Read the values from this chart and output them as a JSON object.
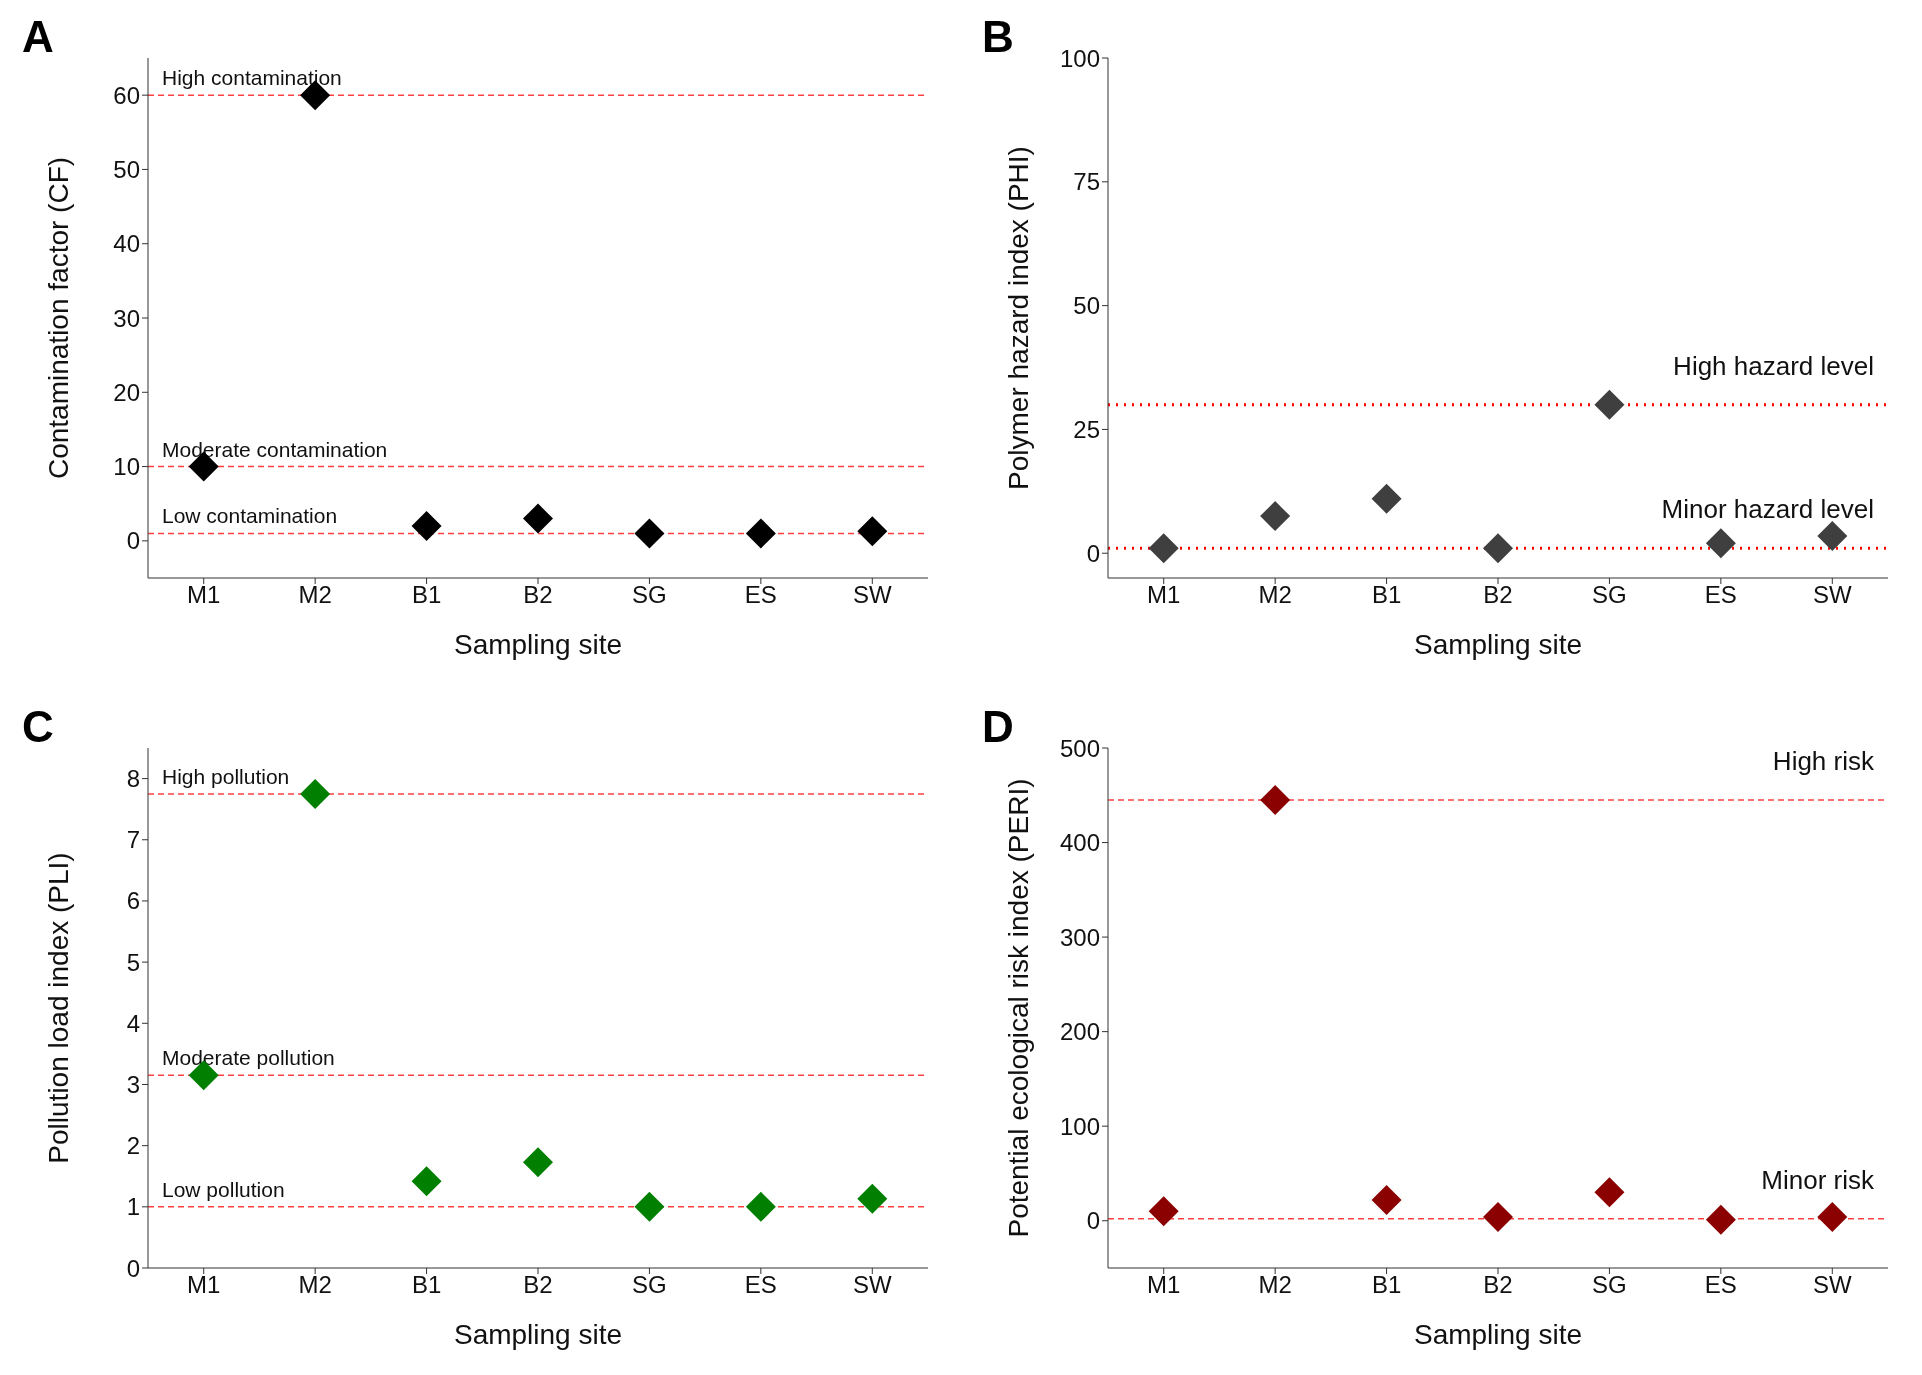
{
  "chart_data": [
    {
      "type": "scatter",
      "title": "A",
      "xlabel": "Sampling site",
      "ylabel": "Contamination factor (CF)",
      "categories": [
        "M1",
        "M2",
        "B1",
        "B2",
        "SG",
        "ES",
        "SW"
      ],
      "values": [
        10,
        60,
        2,
        3,
        1,
        1,
        1.3
      ],
      "color": "#000000",
      "marker": "diamond",
      "ylim": [
        -5,
        65
      ],
      "yticks": [
        0,
        10,
        20,
        30,
        40,
        50,
        60
      ],
      "grid": false,
      "legend": false,
      "ref_lines": [
        {
          "axis": "y",
          "value": 60,
          "label": "High contamination",
          "color": "#ff4040",
          "line_style": "dashed"
        },
        {
          "axis": "y",
          "value": 10,
          "label": "Moderate contamination",
          "color": "#ff4040",
          "line_style": "dashed"
        },
        {
          "axis": "y",
          "value": 1,
          "label": "Low contamination",
          "color": "#ff4040",
          "line_style": "dashed"
        }
      ]
    },
    {
      "type": "scatter",
      "title": "B",
      "xlabel": "Sampling site",
      "ylabel": "Polymer hazard index (PHI)",
      "categories": [
        "M1",
        "M2",
        "B1",
        "B2",
        "SG",
        "ES",
        "SW"
      ],
      "values": [
        1,
        7.5,
        11,
        1,
        30,
        2,
        3.5
      ],
      "color": "#3f3f3f",
      "marker": "diamond",
      "ylim": [
        -5,
        100
      ],
      "yticks": [
        0,
        25,
        50,
        75,
        100
      ],
      "grid": false,
      "legend": false,
      "ref_lines": [
        {
          "axis": "y",
          "value": 30,
          "label": "High hazard level",
          "color": "#ff0000",
          "line_style": "dotted"
        },
        {
          "axis": "y",
          "value": 1,
          "label": "Minor hazard level",
          "color": "#ff0000",
          "line_style": "dotted"
        }
      ]
    },
    {
      "type": "scatter",
      "title": "C",
      "xlabel": "Sampling site",
      "ylabel": "Pollution load index (PLI)",
      "categories": [
        "M1",
        "M2",
        "B1",
        "B2",
        "SG",
        "ES",
        "SW"
      ],
      "values": [
        3.15,
        7.75,
        1.42,
        1.73,
        1,
        1,
        1.13
      ],
      "color": "#007f00",
      "marker": "diamond",
      "ylim": [
        0,
        8.5
      ],
      "yticks": [
        0,
        1,
        2,
        3,
        4,
        5,
        6,
        7,
        8
      ],
      "grid": false,
      "legend": false,
      "ref_lines": [
        {
          "axis": "y",
          "value": 7.75,
          "label": "High pollution",
          "color": "#ff4040",
          "line_style": "dashed"
        },
        {
          "axis": "y",
          "value": 3.15,
          "label": "Moderate pollution",
          "color": "#ff4040",
          "line_style": "dashed"
        },
        {
          "axis": "y",
          "value": 1,
          "label": "Low pollution",
          "color": "#ff4040",
          "line_style": "dashed"
        }
      ]
    },
    {
      "type": "scatter",
      "title": "D",
      "xlabel": "Sampling site",
      "ylabel": "Potential ecological risk index (PERI)",
      "categories": [
        "M1",
        "M2",
        "B1",
        "B2",
        "SG",
        "ES",
        "SW"
      ],
      "values": [
        10,
        445,
        22,
        4,
        30,
        1,
        4
      ],
      "color": "#8b0000",
      "marker": "diamond",
      "ylim": [
        -50,
        500
      ],
      "yticks": [
        0,
        100,
        200,
        300,
        400,
        500
      ],
      "grid": false,
      "legend": false,
      "ref_lines": [
        {
          "axis": "y",
          "value": 445,
          "label": "High risk",
          "color": "#ff4040",
          "line_style": "dashed"
        },
        {
          "axis": "y",
          "value": 2,
          "label": "Minor risk",
          "color": "#ff4040",
          "line_style": "dashed"
        }
      ]
    }
  ]
}
